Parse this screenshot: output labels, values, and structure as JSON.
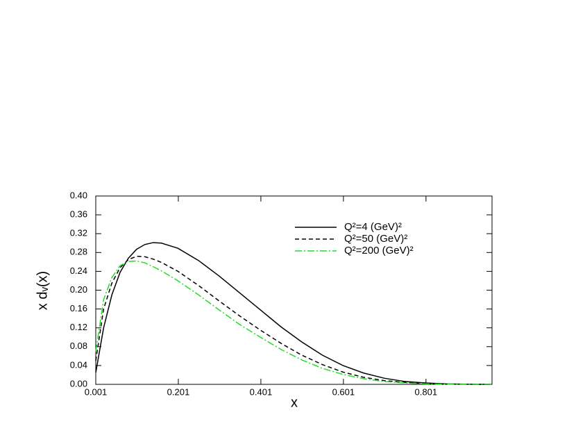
{
  "chart_data": {
    "type": "line",
    "xlabel": "x",
    "ylabel": "x dᵥ(x)",
    "x": [
      0.001,
      0.02,
      0.04,
      0.06,
      0.08,
      0.1,
      0.12,
      0.14,
      0.16,
      0.2,
      0.25,
      0.3,
      0.35,
      0.4,
      0.45,
      0.5,
      0.55,
      0.6,
      0.65,
      0.7,
      0.75,
      0.8,
      0.85,
      0.9,
      0.96
    ],
    "series": [
      {
        "name": "Q²=4 (GeV)²",
        "color": "#000000",
        "dash": "none",
        "values": [
          0.025,
          0.12,
          0.19,
          0.238,
          0.268,
          0.287,
          0.297,
          0.301,
          0.3,
          0.289,
          0.263,
          0.23,
          0.194,
          0.158,
          0.122,
          0.09,
          0.062,
          0.04,
          0.024,
          0.013,
          0.006,
          0.003,
          0.001,
          0.0003,
          0
        ]
      },
      {
        "name": "Q²=50 (GeV)²",
        "color": "#000000",
        "dash": "6,4",
        "values": [
          0.05,
          0.16,
          0.215,
          0.248,
          0.265,
          0.272,
          0.271,
          0.266,
          0.259,
          0.24,
          0.21,
          0.177,
          0.145,
          0.115,
          0.087,
          0.062,
          0.042,
          0.026,
          0.015,
          0.008,
          0.004,
          0.0015,
          0.0005,
          0.0001,
          0
        ]
      },
      {
        "name": "Q²=200 (GeV)²",
        "color": "#22dd22",
        "dash": "10,3,2,3",
        "values": [
          0.07,
          0.18,
          0.227,
          0.252,
          0.261,
          0.262,
          0.258,
          0.25,
          0.241,
          0.22,
          0.19,
          0.158,
          0.127,
          0.1,
          0.074,
          0.052,
          0.034,
          0.021,
          0.012,
          0.006,
          0.003,
          0.001,
          0.0003,
          0.0001,
          0
        ]
      }
    ],
    "xlim": [
      0.001,
      0.961
    ],
    "ylim": [
      0,
      0.4
    ],
    "xticks": [
      0.001,
      0.201,
      0.401,
      0.601,
      0.801
    ],
    "yticks": [
      {
        "value": 0,
        "label": "0.00"
      },
      {
        "value": 0.04,
        "label": "0.04"
      },
      {
        "value": 0.08,
        "label": "0.08"
      },
      {
        "value": 0.12,
        "label": "0.12"
      },
      {
        "value": 0.16,
        "label": "0.16"
      },
      {
        "value": 0.2,
        "label": "0.20"
      },
      {
        "value": 0.24,
        "label": "0.24"
      },
      {
        "value": 0.28,
        "label": "0.28"
      },
      {
        "value": 0.32,
        "label": "0.32"
      },
      {
        "value": 0.36,
        "label": "0.36"
      },
      {
        "value": 0.4,
        "label": "0.40"
      }
    ],
    "legend": "upper right",
    "grid": false
  }
}
